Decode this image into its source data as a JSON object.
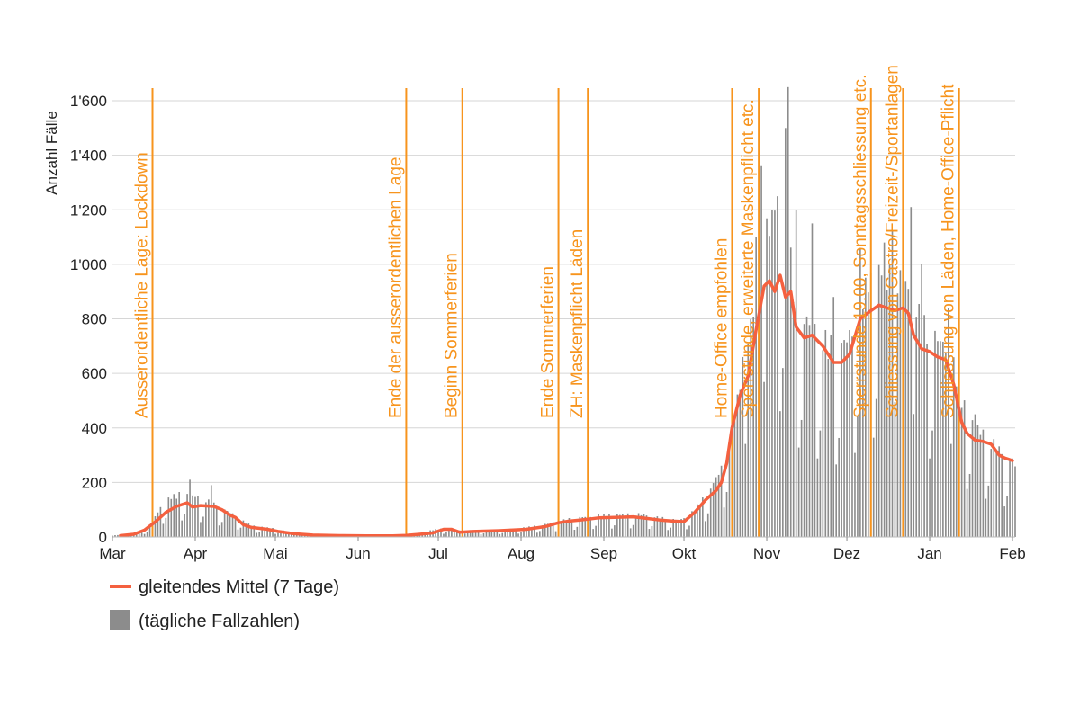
{
  "colors": {
    "line": "#f4603f",
    "bar": "#8c8c8c",
    "event": "#f7941d",
    "grid": "#d6d6d6",
    "text": "#222222"
  },
  "chart_data": {
    "type": "bar",
    "title": "",
    "xlabel": "",
    "ylabel": "Anzahl Fälle",
    "ylim": [
      0,
      1600
    ],
    "yticks": [
      0,
      200,
      400,
      600,
      800,
      1000,
      1200,
      1400,
      1600
    ],
    "ytick_labels": [
      "0",
      "200",
      "400",
      "600",
      "800",
      "1'000",
      "1'200",
      "1'400",
      "1'600"
    ],
    "month_ticks": [
      {
        "label": "Mar",
        "day": 0
      },
      {
        "label": "Apr",
        "day": 31
      },
      {
        "label": "Mai",
        "day": 61
      },
      {
        "label": "Jun",
        "day": 92
      },
      {
        "label": "Jul",
        "day": 122
      },
      {
        "label": "Aug",
        "day": 153
      },
      {
        "label": "Sep",
        "day": 184
      },
      {
        "label": "Okt",
        "day": 214
      },
      {
        "label": "Nov",
        "day": 245
      },
      {
        "label": "Dez",
        "day": 275
      },
      {
        "label": "Jan",
        "day": 306
      },
      {
        "label": "Feb",
        "day": 337
      }
    ],
    "x_domain_days": [
      0,
      338
    ],
    "events": [
      {
        "label": "Ausserordentliche Lage: Lockdown",
        "day": 15
      },
      {
        "label": "Ende der ausserordentlichen Lage",
        "day": 110
      },
      {
        "label": "Beginn Sommerferien",
        "day": 131
      },
      {
        "label": "Ende Sommerferien",
        "day": 167
      },
      {
        "label": "ZH: Maskenpflicht Läden",
        "day": 178
      },
      {
        "label": "Home-Office empfohlen",
        "day": 232
      },
      {
        "label": "Sperrstunde, erweiterte Maskenpflicht etc.",
        "day": 242
      },
      {
        "label": "Sperrstunde 19.00, Sonntagsschliessung etc.",
        "day": 284
      },
      {
        "label": "Schliessung von Gastro/Freizeit-/Sportanlagen",
        "day": 296
      },
      {
        "label": "Schliessung von Läden, Home-Office-Pflicht",
        "day": 317
      }
    ],
    "series": [
      {
        "name": "gleitendes Mittel (7 Tage)",
        "type": "line",
        "points": [
          [
            3,
            5
          ],
          [
            8,
            10
          ],
          [
            12,
            25
          ],
          [
            16,
            55
          ],
          [
            20,
            90
          ],
          [
            24,
            112
          ],
          [
            28,
            125
          ],
          [
            30,
            110
          ],
          [
            33,
            115
          ],
          [
            38,
            112
          ],
          [
            41,
            100
          ],
          [
            44,
            80
          ],
          [
            46,
            72
          ],
          [
            49,
            45
          ],
          [
            52,
            35
          ],
          [
            58,
            28
          ],
          [
            62,
            20
          ],
          [
            68,
            12
          ],
          [
            75,
            7
          ],
          [
            85,
            5
          ],
          [
            95,
            4
          ],
          [
            105,
            4
          ],
          [
            110,
            6
          ],
          [
            115,
            10
          ],
          [
            120,
            15
          ],
          [
            124,
            28
          ],
          [
            127,
            28
          ],
          [
            130,
            17
          ],
          [
            135,
            20
          ],
          [
            145,
            23
          ],
          [
            155,
            28
          ],
          [
            162,
            38
          ],
          [
            167,
            52
          ],
          [
            171,
            58
          ],
          [
            175,
            62
          ],
          [
            178,
            65
          ],
          [
            182,
            70
          ],
          [
            188,
            72
          ],
          [
            195,
            74
          ],
          [
            200,
            68
          ],
          [
            205,
            62
          ],
          [
            210,
            58
          ],
          [
            214,
            56
          ],
          [
            218,
            90
          ],
          [
            222,
            135
          ],
          [
            226,
            170
          ],
          [
            228,
            200
          ],
          [
            230,
            270
          ],
          [
            232,
            400
          ],
          [
            235,
            520
          ],
          [
            238,
            590
          ],
          [
            241,
            760
          ],
          [
            244,
            920
          ],
          [
            246,
            940
          ],
          [
            248,
            900
          ],
          [
            250,
            960
          ],
          [
            252,
            880
          ],
          [
            254,
            900
          ],
          [
            256,
            770
          ],
          [
            259,
            730
          ],
          [
            262,
            740
          ],
          [
            266,
            700
          ],
          [
            270,
            640
          ],
          [
            273,
            640
          ],
          [
            276,
            670
          ],
          [
            280,
            800
          ],
          [
            284,
            830
          ],
          [
            287,
            850
          ],
          [
            290,
            840
          ],
          [
            293,
            830
          ],
          [
            296,
            840
          ],
          [
            298,
            820
          ],
          [
            300,
            740
          ],
          [
            303,
            690
          ],
          [
            306,
            680
          ],
          [
            309,
            660
          ],
          [
            312,
            650
          ],
          [
            315,
            560
          ],
          [
            318,
            420
          ],
          [
            320,
            380
          ],
          [
            323,
            355
          ],
          [
            326,
            350
          ],
          [
            329,
            340
          ],
          [
            332,
            300
          ],
          [
            334,
            290
          ],
          [
            337,
            280
          ]
        ]
      },
      {
        "name": "(tägliche Fallzahlen)",
        "type": "bar",
        "knots": [
          [
            0,
            5
          ],
          [
            10,
            15
          ],
          [
            14,
            40
          ],
          [
            16,
            70
          ],
          [
            19,
            120
          ],
          [
            22,
            140
          ],
          [
            25,
            150
          ],
          [
            28,
            155
          ],
          [
            31,
            140
          ],
          [
            34,
            135
          ],
          [
            37,
            120
          ],
          [
            40,
            105
          ],
          [
            43,
            90
          ],
          [
            46,
            75
          ],
          [
            49,
            55
          ],
          [
            52,
            40
          ],
          [
            56,
            35
          ],
          [
            60,
            30
          ],
          [
            65,
            20
          ],
          [
            72,
            12
          ],
          [
            80,
            8
          ],
          [
            92,
            5
          ],
          [
            105,
            5
          ],
          [
            110,
            8
          ],
          [
            115,
            12
          ],
          [
            120,
            25
          ],
          [
            125,
            30
          ],
          [
            130,
            22
          ],
          [
            140,
            24
          ],
          [
            150,
            28
          ],
          [
            160,
            40
          ],
          [
            167,
            55
          ],
          [
            172,
            65
          ],
          [
            177,
            70
          ],
          [
            182,
            75
          ],
          [
            190,
            78
          ],
          [
            197,
            80
          ],
          [
            202,
            72
          ],
          [
            207,
            65
          ],
          [
            212,
            58
          ],
          [
            216,
            75
          ],
          [
            220,
            120
          ],
          [
            224,
            170
          ],
          [
            228,
            240
          ],
          [
            231,
            330
          ],
          [
            234,
            480
          ],
          [
            237,
            620
          ],
          [
            240,
            800
          ],
          [
            243,
            1000
          ],
          [
            246,
            1100
          ],
          [
            249,
            1180
          ],
          [
            252,
            1100
          ],
          [
            255,
            900
          ],
          [
            258,
            780
          ],
          [
            261,
            740
          ],
          [
            264,
            720
          ],
          [
            268,
            680
          ],
          [
            272,
            660
          ],
          [
            276,
            700
          ],
          [
            280,
            840
          ],
          [
            284,
            900
          ],
          [
            288,
            940
          ],
          [
            292,
            900
          ],
          [
            296,
            900
          ],
          [
            300,
            820
          ],
          [
            304,
            740
          ],
          [
            308,
            700
          ],
          [
            312,
            660
          ],
          [
            316,
            580
          ],
          [
            318,
            480
          ],
          [
            321,
            420
          ],
          [
            324,
            380
          ],
          [
            327,
            350
          ],
          [
            331,
            320
          ],
          [
            334,
            280
          ],
          [
            338,
            260
          ]
        ],
        "spikes": [
          [
            29,
            210
          ],
          [
            37,
            190
          ],
          [
            232,
            720
          ],
          [
            236,
            660
          ],
          [
            241,
            1100
          ],
          [
            243,
            1360
          ],
          [
            247,
            1200
          ],
          [
            252,
            1500
          ],
          [
            253,
            1650
          ],
          [
            256,
            1200
          ],
          [
            262,
            1150
          ],
          [
            270,
            880
          ],
          [
            280,
            1060
          ],
          [
            289,
            1080
          ],
          [
            292,
            1120
          ],
          [
            299,
            1210
          ],
          [
            303,
            1000
          ],
          [
            313,
            840
          ],
          [
            317,
            920
          ],
          [
            323,
            450
          ]
        ],
        "weekend_low_factor": 0.4
      }
    ],
    "legend": {
      "position": "bottom-left",
      "entries": [
        "gleitendes Mittel (7 Tage)",
        "(tägliche Fallzahlen)"
      ]
    }
  }
}
